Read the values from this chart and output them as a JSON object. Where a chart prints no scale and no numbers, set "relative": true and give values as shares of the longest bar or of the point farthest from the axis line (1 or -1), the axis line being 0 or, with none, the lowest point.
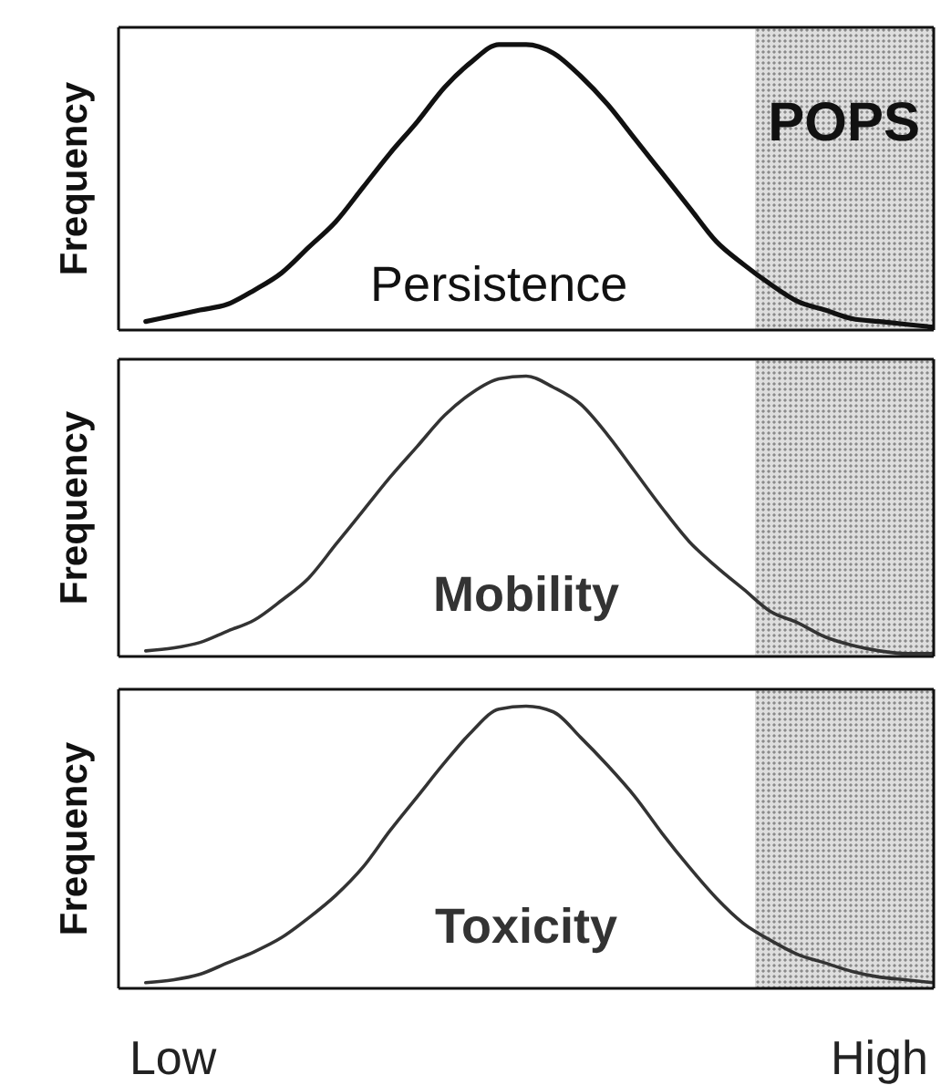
{
  "chart_data": [
    {
      "type": "line",
      "ylabel": "Frequency",
      "relative": true,
      "categories": [
        null,
        null,
        null,
        null,
        null,
        null,
        null,
        null,
        null,
        null,
        null,
        null,
        null,
        null,
        null,
        null,
        null,
        null,
        null,
        null,
        null,
        null,
        null,
        null,
        null,
        null,
        null,
        null,
        null,
        null,
        null
      ],
      "series": [
        {
          "name": "Persistence",
          "color": "#111111",
          "values": [
            null,
            0.03,
            0.05,
            0.07,
            0.09,
            0.14,
            0.2,
            0.29,
            0.38,
            0.5,
            0.62,
            0.73,
            0.85,
            0.94,
            1,
            1,
            0.97,
            0.89,
            0.79,
            0.67,
            0.55,
            0.43,
            0.31,
            0.23,
            0.16,
            0.1,
            0.07,
            0.04,
            0.03,
            0.02,
            0.01
          ]
        }
      ],
      "annotations": [
        "POPS"
      ]
    },
    {
      "type": "line",
      "ylabel": "Frequency",
      "relative": true,
      "categories": [
        null,
        null,
        null,
        null,
        null,
        null,
        null,
        null,
        null,
        null,
        null,
        null,
        null,
        null,
        null,
        null,
        null,
        null,
        null,
        null,
        null,
        null,
        null,
        null,
        null,
        null,
        null,
        null,
        null,
        null,
        null
      ],
      "series": [
        {
          "name": "Mobility",
          "color": "#333333",
          "values": [
            null,
            0.02,
            0.03,
            0.05,
            0.09,
            0.13,
            0.2,
            0.28,
            0.4,
            0.52,
            0.64,
            0.75,
            0.86,
            0.94,
            0.99,
            1,
            0.96,
            0.9,
            0.79,
            0.66,
            0.53,
            0.41,
            0.32,
            0.24,
            0.16,
            0.12,
            0.07,
            0.04,
            0.02,
            0.01,
            0.01
          ]
        }
      ]
    },
    {
      "type": "line",
      "ylabel": "Frequency",
      "relative": true,
      "tick_labels": "x",
      "categories": [
        null,
        null,
        "Low",
        null,
        null,
        null,
        null,
        null,
        null,
        null,
        null,
        null,
        null,
        null,
        null,
        null,
        null,
        null,
        null,
        null,
        null,
        null,
        null,
        null,
        null,
        null,
        null,
        null,
        "High",
        null,
        null
      ],
      "series": [
        {
          "name": "Toxicity",
          "color": "#333333",
          "values": [
            null,
            0.02,
            0.03,
            0.05,
            0.09,
            0.13,
            0.18,
            0.25,
            0.33,
            0.43,
            0.56,
            0.68,
            0.8,
            0.91,
            0.99,
            1,
            0.98,
            0.89,
            0.79,
            0.68,
            0.55,
            0.43,
            0.32,
            0.23,
            0.17,
            0.12,
            0.09,
            0.06,
            0.04,
            0.03,
            0.02
          ]
        }
      ]
    }
  ]
}
